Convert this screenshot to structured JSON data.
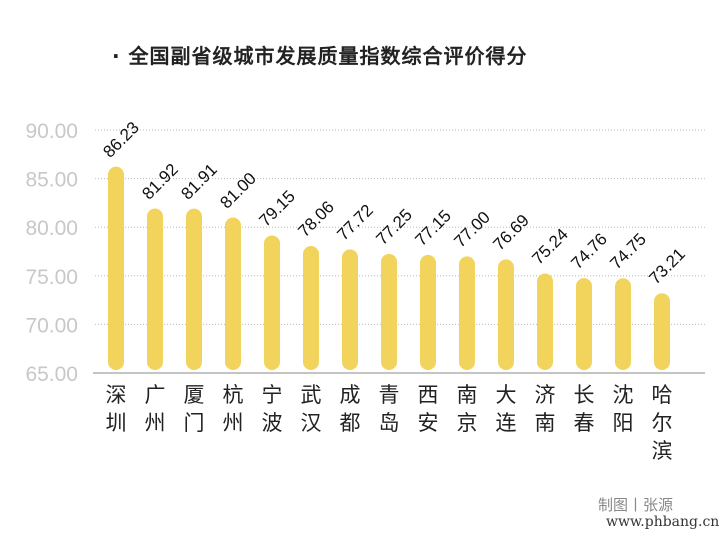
{
  "title": "· 全国副省级城市发展质量指数综合评价得分",
  "credit": "制图丨张源",
  "watermark": "www.phbang.cn",
  "chart_data": {
    "type": "bar",
    "title": "· 全国副省级城市发展质量指数综合评价得分",
    "categories": [
      "深圳",
      "广州",
      "厦门",
      "杭州",
      "宁波",
      "武汉",
      "成都",
      "青岛",
      "西安",
      "南京",
      "大连",
      "济南",
      "长春",
      "沈阳",
      "哈尔滨"
    ],
    "values": [
      86.23,
      81.92,
      81.91,
      81.0,
      79.15,
      78.06,
      77.72,
      77.25,
      77.15,
      77.0,
      76.69,
      75.24,
      74.76,
      74.75,
      73.21
    ],
    "yticks": [
      "65.00",
      "70.00",
      "75.00",
      "80.00",
      "85.00",
      "90.00"
    ],
    "ylim": [
      65,
      90
    ],
    "grid": true,
    "bar_color": "#f2d35b",
    "tick_color": "#c8c8c8"
  }
}
